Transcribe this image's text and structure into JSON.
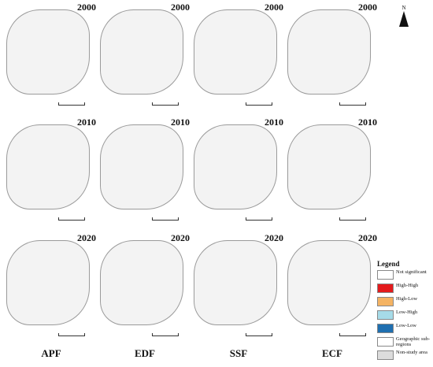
{
  "columns": [
    "APF",
    "EDF",
    "SSF",
    "ECF"
  ],
  "years": [
    "2000",
    "2010",
    "2020"
  ],
  "north_label": "N",
  "legend": {
    "title": "Legend",
    "items": [
      {
        "label": "Not significant",
        "color": "#ffffff"
      },
      {
        "label": "High-High",
        "color": "#e31a1c"
      },
      {
        "label": "High-Low",
        "color": "#f4b363"
      },
      {
        "label": "Low-High",
        "color": "#a6dbe8"
      },
      {
        "label": "Low-Low",
        "color": "#1f6fb0"
      },
      {
        "label": "Geographic sub-regions",
        "color": "#ffffff"
      },
      {
        "label": "Non-study area",
        "color": "#dcdcdc"
      }
    ]
  }
}
